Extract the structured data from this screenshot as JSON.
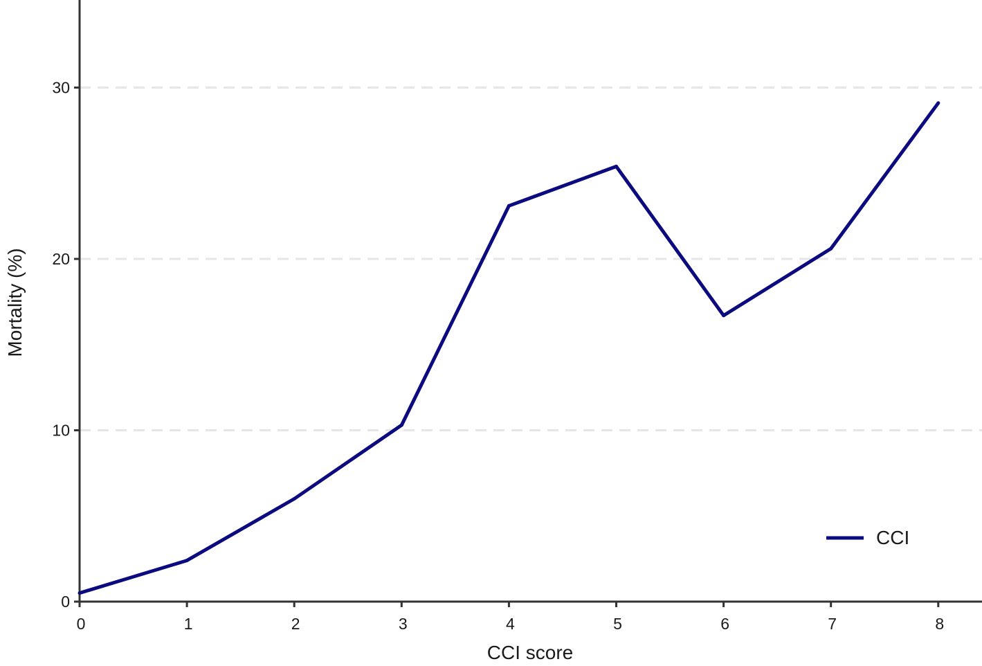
{
  "chart_data": {
    "type": "line",
    "title": "",
    "xlabel": "CCI score",
    "ylabel": "Mortality (%)",
    "x": [
      0,
      1,
      2,
      3,
      4,
      5,
      6,
      7,
      8
    ],
    "x_ticks": [
      "0",
      "1",
      "2",
      "3",
      "4",
      "5",
      "6",
      "7",
      "8"
    ],
    "y_ticks": [
      "0",
      "10",
      "20",
      "30"
    ],
    "xlim": [
      0,
      8.4
    ],
    "ylim": [
      0,
      35
    ],
    "grid": "horizontal dashed",
    "legend_position": "bottom-right",
    "series": [
      {
        "name": "CCI",
        "color": "#0b0b7f",
        "values": [
          0.5,
          2.4,
          6.0,
          10.3,
          23.1,
          25.4,
          16.7,
          20.6,
          29.1
        ]
      }
    ]
  }
}
